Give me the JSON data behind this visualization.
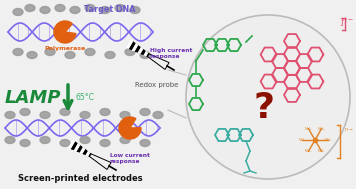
{
  "bg_color": "#f0f0f0",
  "lamp_text": "LAMP",
  "lamp_color": "#1a8a3a",
  "temp_text": "65°C",
  "temp_color": "#3cb371",
  "polymerase_text": "Polymerase",
  "polymerase_color": "#e06010",
  "target_dna_text": "Target DNA",
  "target_dna_color": "#6a5acd",
  "high_current_text": "High current\nresponse",
  "high_current_color": "#6a2fb0",
  "low_current_text": "Low current\nresponse",
  "low_current_color": "#6a2fb0",
  "redox_probe_text": "Redox probe",
  "redox_probe_color": "#555555",
  "screen_text": "Screen-printed electrodes",
  "screen_color": "#111111",
  "circle_bg": "#eeeeee",
  "circle_edge": "#bbbbbb",
  "green_mol_color": "#2da84e",
  "red_mol_color": "#e05070",
  "teal_mol_color": "#3aaca0",
  "orange_mol_color": "#e08020",
  "question_color": "#8b1000",
  "dna_wave_color": "#7b68ee",
  "particle_color": "#999999",
  "arrow_color": "#1a8a3a"
}
